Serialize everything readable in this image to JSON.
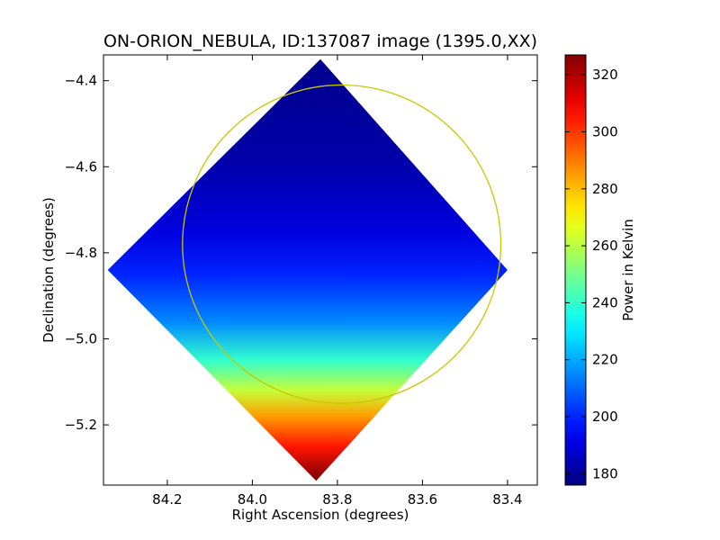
{
  "chart_data": {
    "type": "heatmap",
    "title": "ON-ORION_NEBULA, ID:137087 image (1395.0,XX)",
    "xlabel": "Right Ascension (degrees)",
    "ylabel": "Declination (degrees)",
    "xlim": [
      84.35,
      83.33
    ],
    "ylim": [
      -5.34,
      -4.34
    ],
    "x_ticks": [
      "84.2",
      "84.0",
      "83.8",
      "83.6",
      "83.4"
    ],
    "y_ticks": [
      "−4.4",
      "−4.6",
      "−4.8",
      "−5.0",
      "−5.2"
    ],
    "colorbar": {
      "label": "Power in Kelvin",
      "range": [
        176,
        327
      ],
      "ticks": [
        "180",
        "200",
        "220",
        "240",
        "260",
        "280",
        "300",
        "320"
      ],
      "colormap": "jet"
    },
    "map_extent": {
      "top": {
        "ra": 83.84,
        "dec": -4.35
      },
      "right": {
        "ra": 83.4,
        "dec": -4.84
      },
      "bottom": {
        "ra": 83.85,
        "dec": -5.33
      },
      "left": {
        "ra": 84.34,
        "dec": -4.84
      }
    },
    "gradient_stops": [
      {
        "dec": -4.36,
        "value": 178
      },
      {
        "dec": -4.58,
        "value": 182
      },
      {
        "dec": -4.75,
        "value": 190
      },
      {
        "dec": -4.85,
        "value": 200
      },
      {
        "dec": -4.96,
        "value": 215
      },
      {
        "dec": -5.05,
        "value": 240
      },
      {
        "dec": -5.12,
        "value": 262
      },
      {
        "dec": -5.18,
        "value": 285
      },
      {
        "dec": -5.25,
        "value": 305
      },
      {
        "dec": -5.32,
        "value": 325
      }
    ],
    "circle": {
      "center_ra": 83.79,
      "center_dec": -4.78,
      "radius_deg": 0.37,
      "color": "#c8c800"
    }
  }
}
